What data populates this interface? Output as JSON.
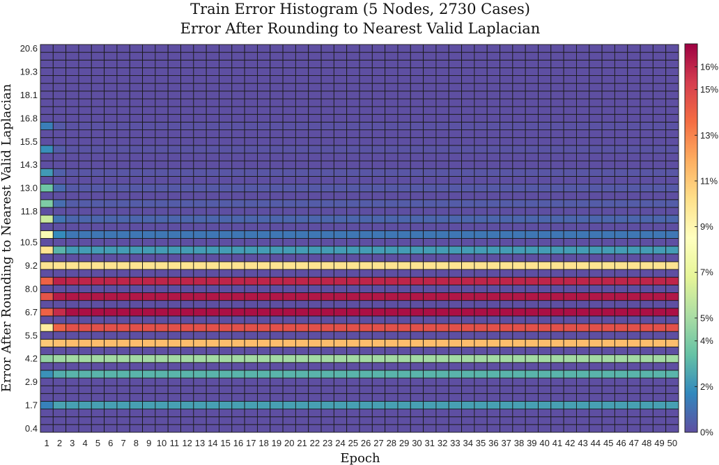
{
  "chart_data": {
    "type": "heatmap",
    "title": "Train Error Histogram (5 Nodes, 2730 Cases)",
    "subtitle": "Error After Rounding to Nearest Valid Laplacian",
    "xlabel": "Epoch",
    "ylabel": "Error After Rounding to Nearest Valid Laplacian",
    "x": [
      1,
      2,
      3,
      4,
      5,
      6,
      7,
      8,
      9,
      10,
      11,
      12,
      13,
      14,
      15,
      16,
      17,
      18,
      19,
      20,
      21,
      22,
      23,
      24,
      25,
      26,
      27,
      28,
      29,
      30,
      31,
      32,
      33,
      34,
      35,
      36,
      37,
      38,
      39,
      40,
      41,
      42,
      43,
      44,
      45,
      46,
      47,
      48,
      49,
      50
    ],
    "y_tick_labels": [
      "0.4",
      "1.7",
      "2.9",
      "4.2",
      "5.5",
      "6.7",
      "8.0",
      "9.2",
      "10.5",
      "11.8",
      "13.0",
      "14.3",
      "15.5",
      "16.8",
      "18.1",
      "19.3",
      "20.6"
    ],
    "num_bins": 50,
    "bin_min": 0.4,
    "bin_max": 20.6,
    "colorbar": {
      "min": 0,
      "max": 17,
      "tick_values": [
        0,
        2,
        4,
        5,
        7,
        9,
        11,
        13,
        15,
        16
      ],
      "tick_labels": [
        "0%",
        "2%",
        "4%",
        "5%",
        "7%",
        "9%",
        "11%",
        "13%",
        "15%",
        "16%"
      ],
      "colormap": "spectral-reversed"
    },
    "rows": [
      {
        "bin": 3,
        "epoch1": 1.5,
        "epoch2": 2.5,
        "rest": 2.4
      },
      {
        "bin": 7,
        "epoch1": 2.0,
        "epoch2": 2.8,
        "rest": 3.0
      },
      {
        "bin": 9,
        "epoch1": 4.5,
        "epoch2": 4.8,
        "rest": 4.9
      },
      {
        "bin": 11,
        "epoch1": 11.0,
        "epoch2": 11.3,
        "rest": 11.4
      },
      {
        "bin": 13,
        "epoch1": 9.5,
        "epoch2": 14.0,
        "rest": 14.6
      },
      {
        "bin": 15,
        "epoch1": 14.0,
        "epoch2": 15.8,
        "rest": 16.6
      },
      {
        "bin": 17,
        "epoch1": 14.5,
        "epoch2": 16.3,
        "rest": 16.4
      },
      {
        "bin": 19,
        "epoch1": 14.0,
        "epoch2": 16.1,
        "rest": 16.0
      },
      {
        "bin": 21,
        "epoch1": 10.0,
        "epoch2": 10.0,
        "rest": 10.0
      },
      {
        "bin": 23,
        "epoch1": 10.0,
        "epoch2": 3.0,
        "rest": 2.3
      },
      {
        "bin": 25,
        "epoch1": 8.0,
        "epoch2": 1.8,
        "rest": 1.2
      },
      {
        "bin": 27,
        "epoch1": 6.0,
        "epoch2": 1.1,
        "rest": 0.7
      },
      {
        "bin": 29,
        "epoch1": 4.0,
        "epoch2": 0.9,
        "rest": 0.4
      },
      {
        "bin": 31,
        "epoch1": 3.6,
        "epoch2": 0.8,
        "rest": 0.3
      },
      {
        "bin": 33,
        "epoch1": 2.2,
        "epoch2": 0.5,
        "rest": 0.2
      },
      {
        "bin": 36,
        "epoch1": 1.9,
        "epoch2": 0.4,
        "rest": 0.15
      },
      {
        "bin": 39,
        "epoch1": 1.4,
        "epoch2": 0.3,
        "rest": 0.1
      }
    ],
    "baseline_value": 0,
    "grid": true
  }
}
